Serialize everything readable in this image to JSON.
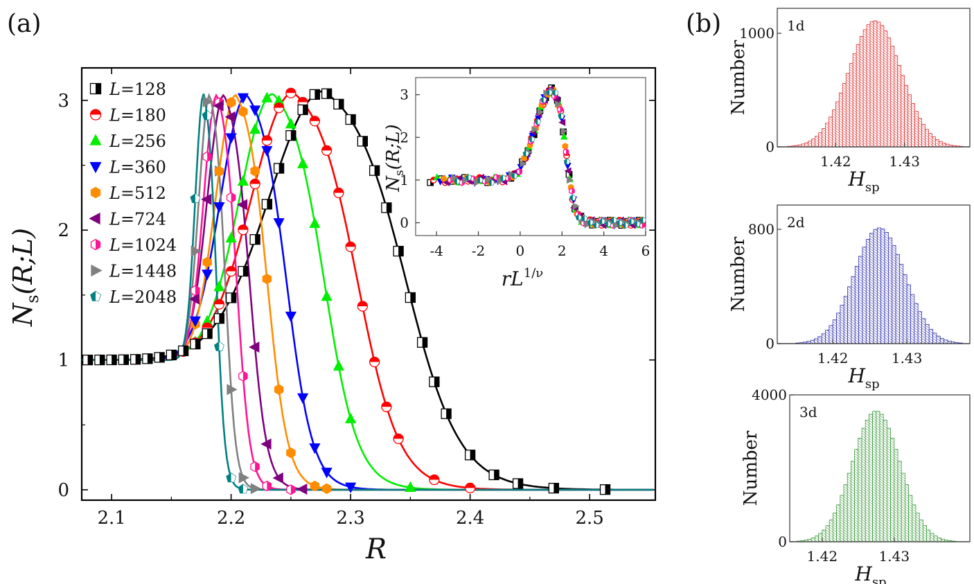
{
  "panel_labels": {
    "a": "(a)",
    "b": "(b)"
  },
  "chart_data": [
    {
      "id": "main",
      "type": "line",
      "title": "",
      "xlabel": "R",
      "ylabel_main": "N",
      "ylabel_sub": "s",
      "ylabel_args": "(R;L)",
      "xlim": [
        2.075,
        2.555
      ],
      "ylim": [
        -0.08,
        3.25
      ],
      "xticks": [
        "2.1",
        "2.2",
        "2.3",
        "2.4",
        "2.5"
      ],
      "yticks": [
        "0",
        "1",
        "2",
        "3"
      ],
      "legend_position": "top-left",
      "series": [
        {
          "name": "L=128",
          "L": "128",
          "color": "#000000",
          "marker": "half-square",
          "peak_R": 2.277,
          "peak_value": 3.07,
          "width_left": 0.045,
          "width_right": 0.058,
          "data_R": [
            2.08,
            2.09,
            2.1,
            2.11,
            2.12,
            2.13,
            2.14,
            2.15,
            2.16,
            2.17,
            2.18,
            2.19,
            2.2,
            2.21,
            2.22,
            2.23,
            2.24,
            2.25,
            2.26,
            2.27,
            2.28,
            2.29,
            2.3,
            2.31,
            2.32,
            2.33,
            2.34,
            2.35,
            2.36,
            2.37,
            2.38,
            2.4,
            2.42,
            2.44,
            2.47,
            2.513
          ]
        },
        {
          "name": "L=180",
          "L": "180",
          "color": "#ff0000",
          "marker": "half-circle",
          "peak_R": 2.252,
          "peak_value": 3.06,
          "width_left": 0.035,
          "width_right": 0.045,
          "data_R": [
            2.16,
            2.17,
            2.18,
            2.19,
            2.2,
            2.21,
            2.22,
            2.23,
            2.24,
            2.25,
            2.26,
            2.27,
            2.28,
            2.29,
            2.3,
            2.31,
            2.32,
            2.33,
            2.34,
            2.37,
            2.4
          ]
        },
        {
          "name": "L=256",
          "L": "256",
          "color": "#00ee00",
          "marker": "triangle-up",
          "peak_R": 2.235,
          "peak_value": 3.05,
          "width_left": 0.028,
          "width_right": 0.036,
          "data_R": [
            2.17,
            2.18,
            2.19,
            2.2,
            2.21,
            2.22,
            2.23,
            2.24,
            2.25,
            2.26,
            2.27,
            2.28,
            2.29,
            2.3,
            2.35
          ]
        },
        {
          "name": "L=360",
          "L": "360",
          "color": "#0000ff",
          "marker": "triangle-down",
          "peak_R": 2.213,
          "peak_value": 3.04,
          "width_left": 0.022,
          "width_right": 0.028,
          "data_R": [
            2.17,
            2.18,
            2.19,
            2.2,
            2.21,
            2.22,
            2.23,
            2.24,
            2.25,
            2.26,
            2.27,
            2.28,
            2.3
          ]
        },
        {
          "name": "L=512",
          "L": "512",
          "color": "#ff8c00",
          "marker": "hexagon",
          "peak_R": 2.204,
          "peak_value": 3.04,
          "width_left": 0.017,
          "width_right": 0.022,
          "data_R": [
            2.17,
            2.18,
            2.19,
            2.2,
            2.21,
            2.22,
            2.23,
            2.24,
            2.25,
            2.27,
            2.28
          ]
        },
        {
          "name": "L=724",
          "L": "724",
          "color": "#7f007f",
          "marker": "triangle-left",
          "peak_R": 2.194,
          "peak_value": 3.04,
          "width_left": 0.014,
          "width_right": 0.018,
          "data_R": [
            2.17,
            2.18,
            2.19,
            2.2,
            2.21,
            2.22,
            2.23,
            2.24,
            2.26
          ]
        },
        {
          "name": "L=1024",
          "L": "1024",
          "color": "#ff1493",
          "marker": "hexagon-half",
          "peak_R": 2.188,
          "peak_value": 3.04,
          "width_left": 0.011,
          "width_right": 0.014,
          "data_R": [
            2.17,
            2.18,
            2.19,
            2.2,
            2.21,
            2.22,
            2.23,
            2.25
          ]
        },
        {
          "name": "L=1448",
          "L": "1448",
          "color": "#808080",
          "marker": "triangle-right",
          "peak_R": 2.182,
          "peak_value": 3.04,
          "width_left": 0.009,
          "width_right": 0.011,
          "data_R": [
            2.17,
            2.18,
            2.19,
            2.2,
            2.21,
            2.22
          ]
        },
        {
          "name": "L=2048",
          "L": "2048",
          "color": "#008080",
          "marker": "pentagon",
          "peak_R": 2.177,
          "peak_value": 3.05,
          "width_left": 0.007,
          "width_right": 0.009,
          "data_R": [
            2.17,
            2.18,
            2.19,
            2.2,
            2.21
          ]
        }
      ]
    },
    {
      "id": "inset",
      "type": "scatter",
      "title": "",
      "xlabel": "rL",
      "xlabel_sup": "1/ν",
      "ylabel_main": "N",
      "ylabel_sub": "s",
      "ylabel_args": "(R;L)",
      "xlim": [
        -5,
        6
      ],
      "ylim": [
        -0.3,
        3.4
      ],
      "xticks": [
        "-4",
        "-2",
        "0",
        "2",
        "4",
        "6"
      ],
      "yticks": [
        "0",
        "1",
        "2",
        "3"
      ],
      "collapse_peak_x": 1.5,
      "collapse_peak_value": 3.1
    },
    {
      "id": "hist-1d",
      "type": "bar",
      "title": "",
      "panel_tag": "1d",
      "xlabel_main": "H",
      "xlabel_sub": "sp",
      "ylabel": "Number",
      "color": "#e03030",
      "xlim": [
        1.4115,
        1.4395
      ],
      "ylim": [
        0,
        1220
      ],
      "xticks": [
        "1.42",
        "1.43"
      ],
      "yticks": [
        "0",
        "1000"
      ],
      "mean": 1.4257,
      "sd": 0.0038,
      "peak_count": 1110
    },
    {
      "id": "hist-2d",
      "type": "bar",
      "title": "",
      "panel_tag": "2d",
      "xlabel_main": "H",
      "xlabel_sub": "sp",
      "ylabel": "Number",
      "color": "#3030b0",
      "xlim": [
        1.4125,
        1.4385
      ],
      "ylim": [
        0,
        970
      ],
      "xticks": [
        "1.42",
        "1.43"
      ],
      "yticks": [
        "0",
        "800"
      ],
      "mean": 1.4263,
      "sd": 0.0034,
      "peak_count": 810
    },
    {
      "id": "hist-3d",
      "type": "bar",
      "title": "",
      "panel_tag": "3d",
      "xlabel_main": "H",
      "xlabel_sub": "sp",
      "ylabel": "Number",
      "color": "#3a9a3a",
      "xlim": [
        1.4155,
        1.4405
      ],
      "ylim": [
        0,
        4000
      ],
      "xticks": [
        "1.42",
        "1.43"
      ],
      "yticks": [
        "0",
        "4000"
      ],
      "mean": 1.4275,
      "sd": 0.0033,
      "peak_count": 3560
    }
  ]
}
